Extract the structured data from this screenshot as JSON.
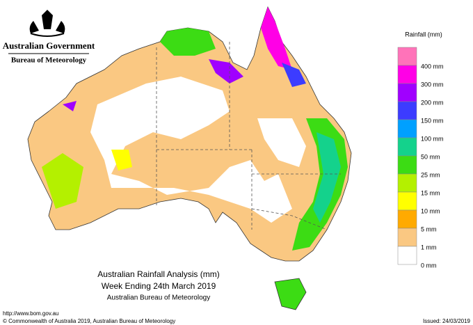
{
  "header": {
    "government": "Australian Government",
    "bureau": "Bureau of Meteorology"
  },
  "legend": {
    "title": "Rainfall (mm)",
    "entries": [
      {
        "color": "#ff73b9",
        "label": "400 mm"
      },
      {
        "color": "#ff00e6",
        "label": "300 mm"
      },
      {
        "color": "#a000ff",
        "label": "200 mm"
      },
      {
        "color": "#3c3cff",
        "label": "150 mm"
      },
      {
        "color": "#00a0ff",
        "label": "100 mm"
      },
      {
        "color": "#14d28c",
        "label": "50 mm"
      },
      {
        "color": "#3cdc14",
        "label": "25 mm"
      },
      {
        "color": "#b4f000",
        "label": "15 mm"
      },
      {
        "color": "#ffff00",
        "label": "10 mm"
      },
      {
        "color": "#ffaa00",
        "label": "5 mm"
      },
      {
        "color": "#fac882",
        "label": "1 mm"
      },
      {
        "color": "#ffffff",
        "label": "0 mm"
      }
    ]
  },
  "caption": {
    "title": "Australian Rainfall Analysis (mm)",
    "period": "Week Ending 24th March 2019",
    "source": "Australian Bureau of Meteorology"
  },
  "footer": {
    "url": "http://www.bom.gov.au",
    "copyright": "© Commonwealth of Australia 2019, Australian Bureau of Meteorology",
    "issued": "Issued: 24/03/2019"
  }
}
